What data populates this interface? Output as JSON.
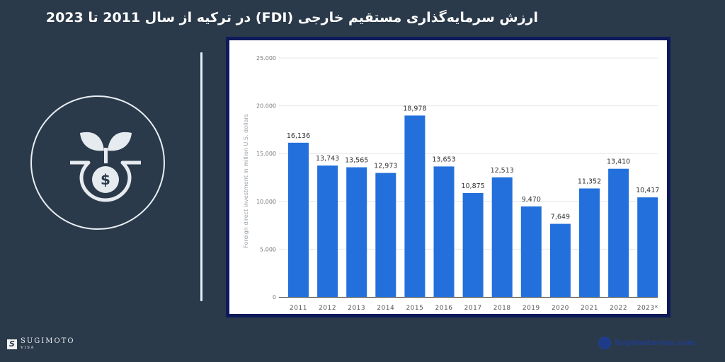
{
  "header": {
    "title": "ارزش سرمایه‌گذاری مستقیم خارجی (FDI) در ترکیه از سال 2011 تا 2023"
  },
  "branding": {
    "logo_name": "SUGIMOTO",
    "logo_sub": "VISA",
    "logo_mark": "S",
    "website": "Sugimotovisa.com",
    "icon": "money-plant-icon"
  },
  "colors": {
    "background": "#2b3a4a",
    "frame": "#0d1a5a",
    "bar": "#2370dd",
    "title": "#ffffff"
  },
  "chart_data": {
    "type": "bar",
    "title": "ارزش سرمایه‌گذاری مستقیم خارجی (FDI) در ترکیه از سال 2011 تا 2023",
    "xlabel": "",
    "ylabel": "Foreign direct investment in million U.S. dollars",
    "categories": [
      "2011",
      "2012",
      "2013",
      "2014",
      "2015",
      "2016",
      "2017",
      "2018",
      "2019",
      "2020",
      "2021",
      "2022",
      "2023*"
    ],
    "values": [
      16136,
      13743,
      13565,
      12973,
      18978,
      13653,
      10875,
      12513,
      9470,
      7649,
      11352,
      13410,
      10417
    ],
    "value_labels": [
      "16,136",
      "13,743",
      "13,565",
      "12,973",
      "18,978",
      "13,653",
      "10,875",
      "12,513",
      "9,470",
      "7,649",
      "11,352",
      "13,410",
      "10,417"
    ],
    "yticks": [
      0,
      5000,
      10000,
      15000,
      20000,
      25000
    ],
    "ytick_labels": [
      "0",
      "5.000",
      "10.000",
      "15.000",
      "20.000",
      "25.000"
    ],
    "ylim": [
      0,
      25000
    ],
    "grid": true,
    "legend": null
  }
}
